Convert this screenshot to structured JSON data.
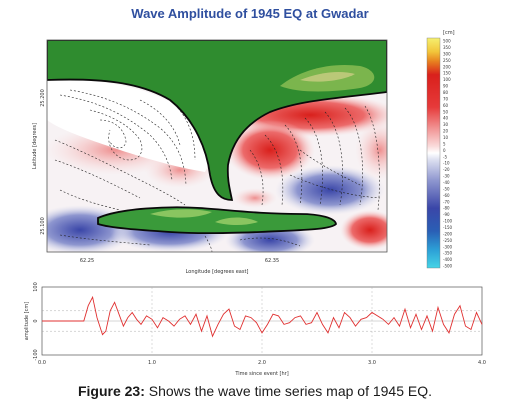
{
  "map": {
    "title": "Wave Amplitude of 1945 EQ at Gwadar",
    "xlabel": "Longitude [degrees east]",
    "ylabel": "Latitude [degrees]",
    "xticks": [
      "62.25",
      "62.35"
    ],
    "yticks": [
      "25.200",
      "25.100"
    ],
    "colorbar": {
      "unit": "[cm]",
      "labels": [
        "500",
        "350",
        "300",
        "250",
        "200",
        "150",
        "100",
        "90",
        "80",
        "70",
        "60",
        "50",
        "40",
        "30",
        "20",
        "10",
        "5",
        "0",
        "-5",
        "-10",
        "-20",
        "-30",
        "-40",
        "-50",
        "-60",
        "-70",
        "-80",
        "-90",
        "-100",
        "-150",
        "-200",
        "-250",
        "-300",
        "-350",
        "-400",
        "-500"
      ]
    }
  },
  "chart_data": {
    "type": "line",
    "xlabel": "Time since event [hr]",
    "ylabel": "amplitude [cm]",
    "xlim": [
      0,
      4.0
    ],
    "ylim": [
      -100,
      100
    ],
    "xticks": [
      "0.0",
      "1.0",
      "2.0",
      "3.0",
      "4.0"
    ],
    "yticks": [
      "100",
      "0",
      "-100"
    ],
    "series": [
      {
        "x": [
          0,
          0.38,
          0.42,
          0.46,
          0.5,
          0.55,
          0.58,
          0.62,
          0.66,
          0.7,
          0.74,
          0.78,
          0.82,
          0.86,
          0.9,
          0.95,
          1.0,
          1.05,
          1.1,
          1.15,
          1.2,
          1.25,
          1.3,
          1.35,
          1.4,
          1.45,
          1.5,
          1.55,
          1.6,
          1.65,
          1.7,
          1.75,
          1.8,
          1.85,
          1.9,
          1.95,
          2.0,
          2.05,
          2.1,
          2.15,
          2.2,
          2.25,
          2.3,
          2.35,
          2.4,
          2.45,
          2.5,
          2.55,
          2.6,
          2.65,
          2.7,
          2.75,
          2.8,
          2.85,
          2.9,
          2.95,
          3.0,
          3.05,
          3.1,
          3.15,
          3.2,
          3.25,
          3.3,
          3.35,
          3.4,
          3.45,
          3.5,
          3.55,
          3.6,
          3.65,
          3.7,
          3.75,
          3.8,
          3.85,
          3.9,
          3.95,
          4.0
        ],
        "y": [
          0,
          0,
          45,
          70,
          10,
          -40,
          -30,
          30,
          55,
          20,
          -15,
          10,
          25,
          5,
          -10,
          15,
          5,
          -20,
          10,
          0,
          -15,
          5,
          15,
          -10,
          20,
          -30,
          15,
          -45,
          -10,
          20,
          35,
          -15,
          -25,
          15,
          10,
          -5,
          -35,
          -10,
          20,
          15,
          -10,
          -5,
          10,
          15,
          -10,
          -5,
          25,
          -10,
          -35,
          10,
          -20,
          25,
          10,
          -15,
          5,
          10,
          25,
          15,
          5,
          -10,
          10,
          -15,
          35,
          -20,
          20,
          -25,
          15,
          -30,
          40,
          -10,
          -35,
          20,
          45,
          -15,
          -25,
          25,
          -10
        ]
      }
    ]
  },
  "caption": {
    "label": "Figure 23:",
    "text": " Shows the wave time series map of 1945 EQ."
  }
}
